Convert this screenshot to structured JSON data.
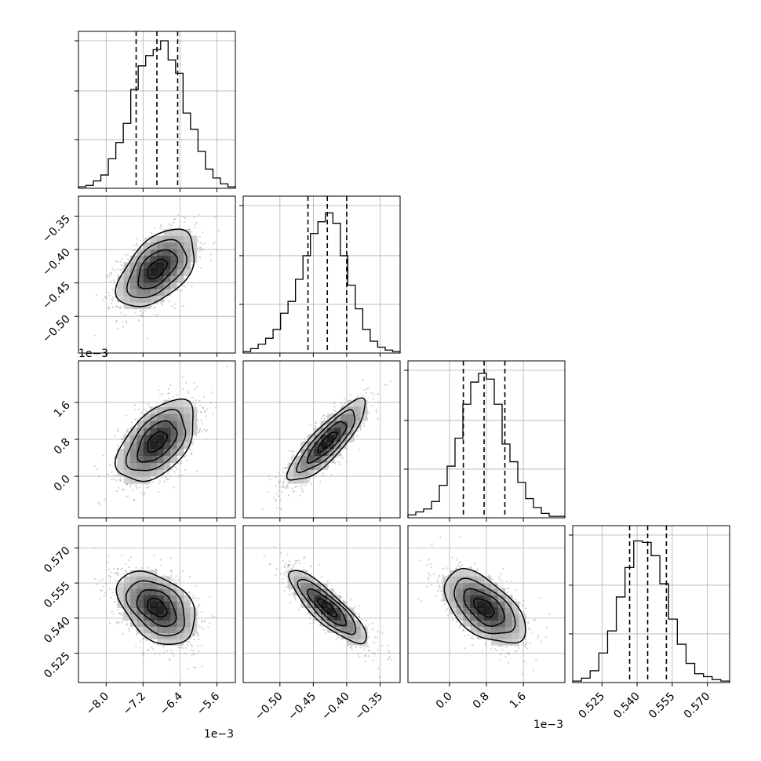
{
  "chart_data": {
    "type": "corner",
    "grid": true,
    "quantile_lines": "dashed",
    "parameters": [
      {
        "range": [
          -8.6,
          -5.2
        ],
        "ticks": [
          -8.0,
          -7.2,
          -6.4,
          -5.6
        ],
        "tick_labels": [
          "−8.0",
          "−7.2",
          "−6.4",
          "−5.6"
        ],
        "offset_text": "1e−3",
        "quantiles": [
          -7.35,
          -6.9,
          -6.45
        ],
        "center": -6.9,
        "sigma": 0.42,
        "hist_bins": [
          0.01,
          0.02,
          0.05,
          0.09,
          0.2,
          0.31,
          0.44,
          0.67,
          0.83,
          0.9,
          0.94,
          1.0,
          0.87,
          0.78,
          0.51,
          0.4,
          0.25,
          0.13,
          0.07,
          0.03,
          0.01
        ]
      },
      {
        "range": [
          -0.555,
          -0.32
        ],
        "ticks": [
          -0.5,
          -0.45,
          -0.4,
          -0.35
        ],
        "tick_labels": [
          "−0.50",
          "−0.45",
          "−0.40",
          "−0.35"
        ],
        "offset_text": "",
        "quantiles": [
          -0.458,
          -0.429,
          -0.4
        ],
        "center": -0.429,
        "sigma": 0.029,
        "hist_bins": [
          0.01,
          0.03,
          0.06,
          0.1,
          0.16,
          0.27,
          0.35,
          0.5,
          0.66,
          0.81,
          0.89,
          0.95,
          0.88,
          0.66,
          0.46,
          0.3,
          0.16,
          0.08,
          0.04,
          0.02,
          0.01
        ]
      },
      {
        "range": [
          -0.9,
          2.5
        ],
        "ticks": [
          0.0,
          0.8,
          1.6
        ],
        "tick_labels": [
          "0.0",
          "0.8",
          "1.6"
        ],
        "offset_text": "1e−3",
        "quantiles": [
          0.3,
          0.75,
          1.2
        ],
        "center": 0.75,
        "sigma": 0.44,
        "hist_bins": [
          0.02,
          0.04,
          0.06,
          0.11,
          0.22,
          0.35,
          0.54,
          0.77,
          0.92,
          0.98,
          0.94,
          0.77,
          0.5,
          0.38,
          0.24,
          0.13,
          0.07,
          0.03,
          0.01,
          0.01
        ]
      },
      {
        "range": [
          0.5125,
          0.5795
        ],
        "ticks": [
          0.525,
          0.54,
          0.555,
          0.57
        ],
        "tick_labels": [
          "0.525",
          "0.540",
          "0.555",
          "0.570"
        ],
        "offset_text": "",
        "quantiles": [
          0.5368,
          0.5445,
          0.5525
        ],
        "center": 0.5445,
        "sigma": 0.0078,
        "hist_bins": [
          0.01,
          0.03,
          0.08,
          0.2,
          0.35,
          0.58,
          0.78,
          0.96,
          0.95,
          0.86,
          0.67,
          0.43,
          0.26,
          0.13,
          0.06,
          0.04,
          0.02,
          0.01
        ]
      }
    ],
    "correlations": [
      [
        1.0,
        0.5,
        0.5,
        -0.4
      ],
      [
        0.5,
        1.0,
        0.85,
        -0.85
      ],
      [
        0.5,
        0.85,
        1.0,
        -0.55
      ],
      [
        -0.4,
        -0.85,
        -0.55,
        1.0
      ]
    ],
    "contour_levels_sigma": [
      0.5,
      1.0,
      1.5,
      2.0
    ]
  }
}
